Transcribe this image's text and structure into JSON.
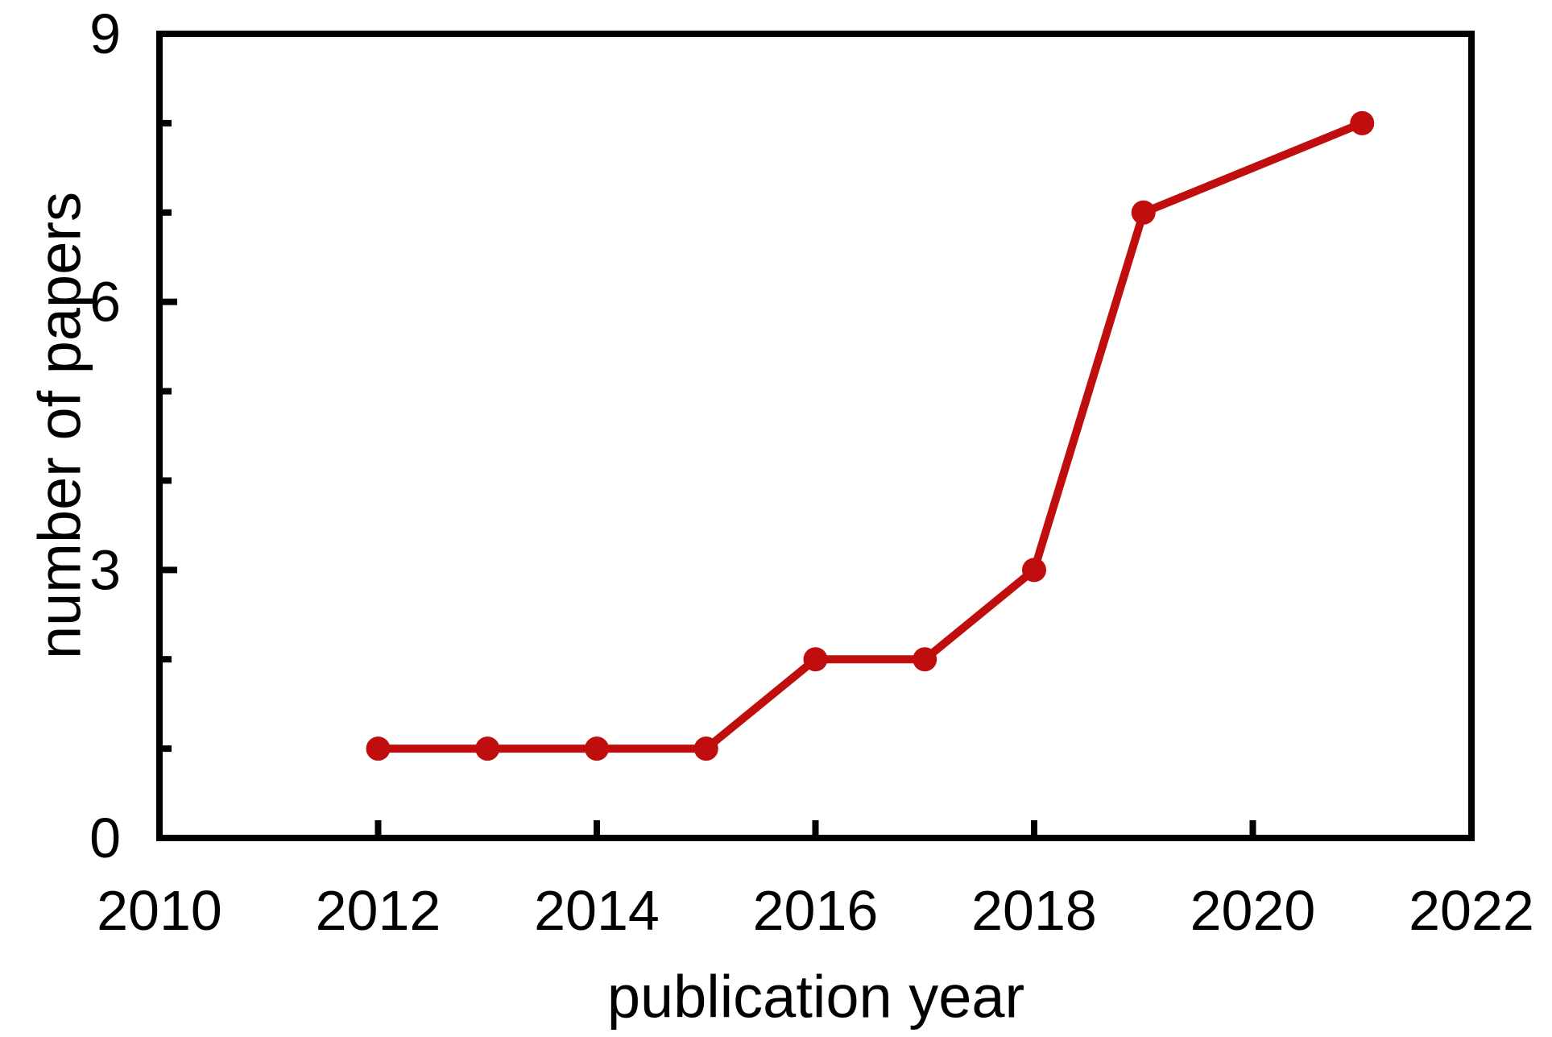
{
  "figure": {
    "background_color": "#ffffff",
    "axis_color": "#000000",
    "text_color": "#000000"
  },
  "chart_data": {
    "type": "line",
    "title": "",
    "xlabel": "publication year",
    "ylabel": "number of papers",
    "x": [
      2012,
      2013,
      2014,
      2015,
      2016,
      2017,
      2018,
      2019,
      2021
    ],
    "series": [
      {
        "name": "number of papers",
        "values": [
          1,
          1,
          1,
          1,
          2,
          2,
          3,
          7,
          8
        ],
        "color": "#C00D0D",
        "marker": "circle",
        "marker_radius": 15,
        "line_width": 10
      }
    ],
    "xlim": [
      2010,
      2022
    ],
    "ylim": [
      0,
      9
    ],
    "x_tick_values": [
      2010,
      2012,
      2014,
      2016,
      2018,
      2020,
      2022
    ],
    "x_tick_labels": [
      "2010",
      "2012",
      "2014",
      "2016",
      "2018",
      "2020",
      "2022"
    ],
    "y_tick_values": [
      0,
      3,
      6,
      9
    ],
    "y_tick_labels": [
      "0",
      "3",
      "6",
      "9"
    ],
    "y_minor_tick_values": [
      1,
      2,
      4,
      5,
      7,
      8
    ],
    "grid": false,
    "legend": false,
    "tick_direction": "in"
  }
}
